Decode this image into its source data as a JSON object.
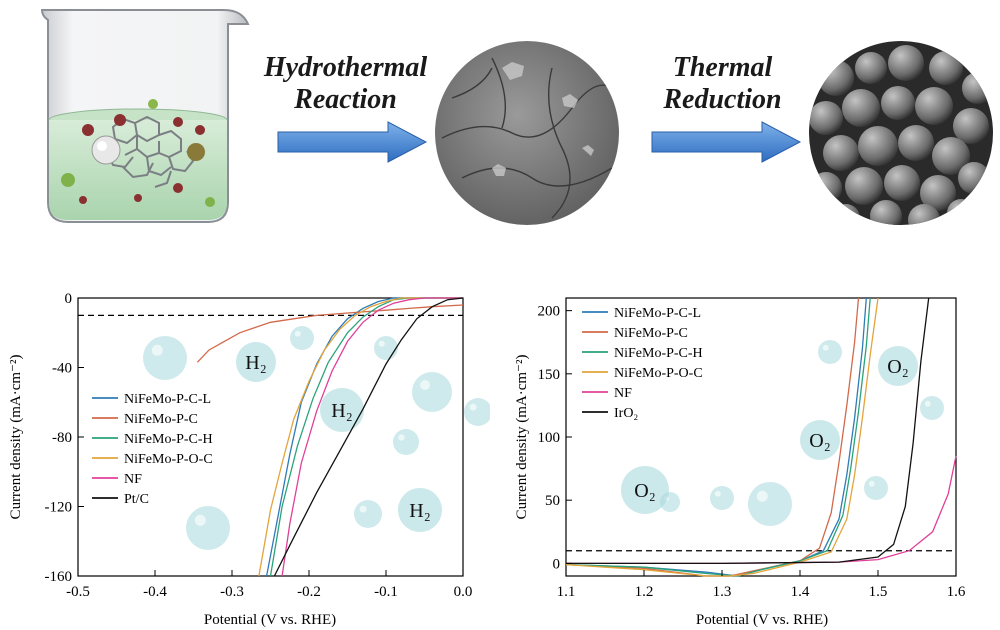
{
  "top": {
    "step1": [
      "Hydrothermal",
      "Reaction"
    ],
    "step2": [
      "Thermal",
      "Reduction"
    ]
  },
  "colors": {
    "arrow": "#3a7fd0",
    "liquid": "#bfe0c4",
    "bubble": "#a8d8dc",
    "axis": "#000000"
  },
  "charts": {
    "her": {
      "ylabel": "Current density (mA·cm⁻²)",
      "xlabel": "Potential (V vs. RHE)",
      "xticks": [
        "-0.5",
        "-0.4",
        "-0.3",
        "-0.2",
        "-0.1",
        "0.0"
      ],
      "yticks": [
        "0",
        "-40",
        "-80",
        "-120",
        "-160"
      ],
      "bubbles": [
        "H₂",
        "H₂",
        "H₂"
      ]
    },
    "oer": {
      "ylabel": "Current density (mA·cm⁻²)",
      "xlabel": "Potential (V vs. RHE)",
      "xticks": [
        "1.1",
        "1.2",
        "1.3",
        "1.4",
        "1.5",
        "1.6"
      ],
      "yticks": [
        "0",
        "50",
        "100",
        "150",
        "200"
      ],
      "bubbles": [
        "O₂",
        "O₂",
        "O₂"
      ]
    }
  },
  "chart_data": [
    {
      "type": "line",
      "xlabel": "Potential (V vs. RHE)",
      "ylabel": "Current density (mA·cm⁻²)",
      "xlim": [
        -0.5,
        0.0
      ],
      "ylim": [
        -160,
        0
      ],
      "reference_line_y": -10,
      "series": [
        {
          "name": "NiFeMo-P-C-L",
          "color": "#2f7bb6",
          "x": [
            -0.255,
            -0.24,
            -0.225,
            -0.21,
            -0.19,
            -0.17,
            -0.15,
            -0.13,
            -0.11,
            -0.09,
            -0.07,
            -0.05,
            -0.03,
            0.0
          ],
          "y": [
            -160,
            -125,
            -90,
            -60,
            -38,
            -22,
            -12,
            -6,
            -2,
            1,
            2,
            3,
            4,
            5
          ]
        },
        {
          "name": "NiFeMo-P-C",
          "color": "#d2694a",
          "x": [
            -0.345,
            -0.33,
            -0.31,
            -0.29,
            -0.27,
            -0.25,
            -0.22,
            -0.19,
            -0.16,
            -0.13,
            -0.1,
            -0.07,
            -0.04,
            0.0
          ],
          "y": [
            -37,
            -30,
            -25,
            -20,
            -17,
            -14,
            -12,
            -10,
            -9,
            -8,
            -7,
            -6,
            -5,
            -4
          ]
        },
        {
          "name": "NiFeMo-P-C-H",
          "color": "#2aa37a",
          "x": [
            -0.25,
            -0.235,
            -0.215,
            -0.195,
            -0.175,
            -0.15,
            -0.13,
            -0.11,
            -0.09,
            -0.07,
            -0.05,
            -0.02,
            0.0
          ],
          "y": [
            -160,
            -120,
            -85,
            -58,
            -37,
            -20,
            -11,
            -5,
            -1,
            1,
            2,
            2,
            2
          ]
        },
        {
          "name": "NiFeMo-P-O-C",
          "color": "#e3a43a",
          "x": [
            -0.265,
            -0.25,
            -0.235,
            -0.22,
            -0.2,
            -0.18,
            -0.16,
            -0.14,
            -0.12,
            -0.1,
            -0.08,
            -0.05,
            -0.02,
            0.0
          ],
          "y": [
            -160,
            -122,
            -95,
            -70,
            -48,
            -30,
            -18,
            -10,
            -5,
            -2,
            0,
            1,
            1,
            1
          ]
        },
        {
          "name": "NF",
          "color": "#e0409a",
          "x": [
            -0.235,
            -0.225,
            -0.21,
            -0.19,
            -0.17,
            -0.15,
            -0.13,
            -0.11,
            -0.09,
            -0.07,
            -0.05,
            -0.03,
            0.0
          ],
          "y": [
            -160,
            -130,
            -95,
            -65,
            -42,
            -25,
            -14,
            -7,
            -3,
            -1,
            0,
            0,
            0
          ]
        },
        {
          "name": "Pt/C",
          "color": "#111111",
          "x": [
            -0.245,
            -0.22,
            -0.19,
            -0.16,
            -0.13,
            -0.1,
            -0.08,
            -0.06,
            -0.04,
            -0.02,
            0.0
          ],
          "y": [
            -160,
            -138,
            -112,
            -88,
            -64,
            -38,
            -24,
            -12,
            -5,
            -1,
            0
          ]
        }
      ]
    },
    {
      "type": "line",
      "xlabel": "Potential (V vs. RHE)",
      "ylabel": "Current density (mA·cm⁻²)",
      "xlim": [
        1.1,
        1.6
      ],
      "ylim": [
        -10,
        210
      ],
      "reference_line_y": 10,
      "series": [
        {
          "name": "NiFeMo-P-C-L",
          "color": "#2f7bb6",
          "x": [
            1.1,
            1.2,
            1.28,
            1.32,
            1.35,
            1.4,
            1.43,
            1.45,
            1.46,
            1.47,
            1.48,
            1.485
          ],
          "y": [
            -1,
            -3,
            -7,
            -12,
            -5,
            2,
            10,
            35,
            70,
            115,
            170,
            210
          ]
        },
        {
          "name": "NiFeMo-P-C",
          "color": "#d2694a",
          "x": [
            1.1,
            1.2,
            1.28,
            1.31,
            1.34,
            1.4,
            1.425,
            1.44,
            1.45,
            1.46,
            1.47,
            1.475
          ],
          "y": [
            -1,
            -4,
            -12,
            -18,
            -6,
            2,
            12,
            40,
            80,
            125,
            175,
            210
          ]
        },
        {
          "name": "NiFeMo-P-C-H",
          "color": "#2aa37a",
          "x": [
            1.1,
            1.2,
            1.28,
            1.32,
            1.35,
            1.4,
            1.435,
            1.455,
            1.465,
            1.475,
            1.485,
            1.49
          ],
          "y": [
            -1,
            -3,
            -8,
            -14,
            -5,
            2,
            10,
            38,
            75,
            120,
            172,
            210
          ]
        },
        {
          "name": "NiFeMo-P-O-C",
          "color": "#e3a43a",
          "x": [
            1.1,
            1.2,
            1.28,
            1.31,
            1.34,
            1.4,
            1.44,
            1.46,
            1.47,
            1.48,
            1.49,
            1.5
          ],
          "y": [
            -1,
            -5,
            -16,
            -20,
            -8,
            1,
            9,
            35,
            70,
            115,
            165,
            210
          ]
        },
        {
          "name": "NF",
          "color": "#e0409a",
          "x": [
            1.1,
            1.3,
            1.45,
            1.5,
            1.54,
            1.57,
            1.59,
            1.6
          ],
          "y": [
            0,
            0,
            1,
            3,
            10,
            25,
            55,
            85
          ]
        },
        {
          "name": "IrO₂",
          "color": "#111111",
          "x": [
            1.1,
            1.3,
            1.45,
            1.5,
            1.52,
            1.535,
            1.545,
            1.555,
            1.565
          ],
          "y": [
            0,
            0,
            1,
            5,
            15,
            45,
            95,
            160,
            210
          ]
        }
      ]
    }
  ]
}
